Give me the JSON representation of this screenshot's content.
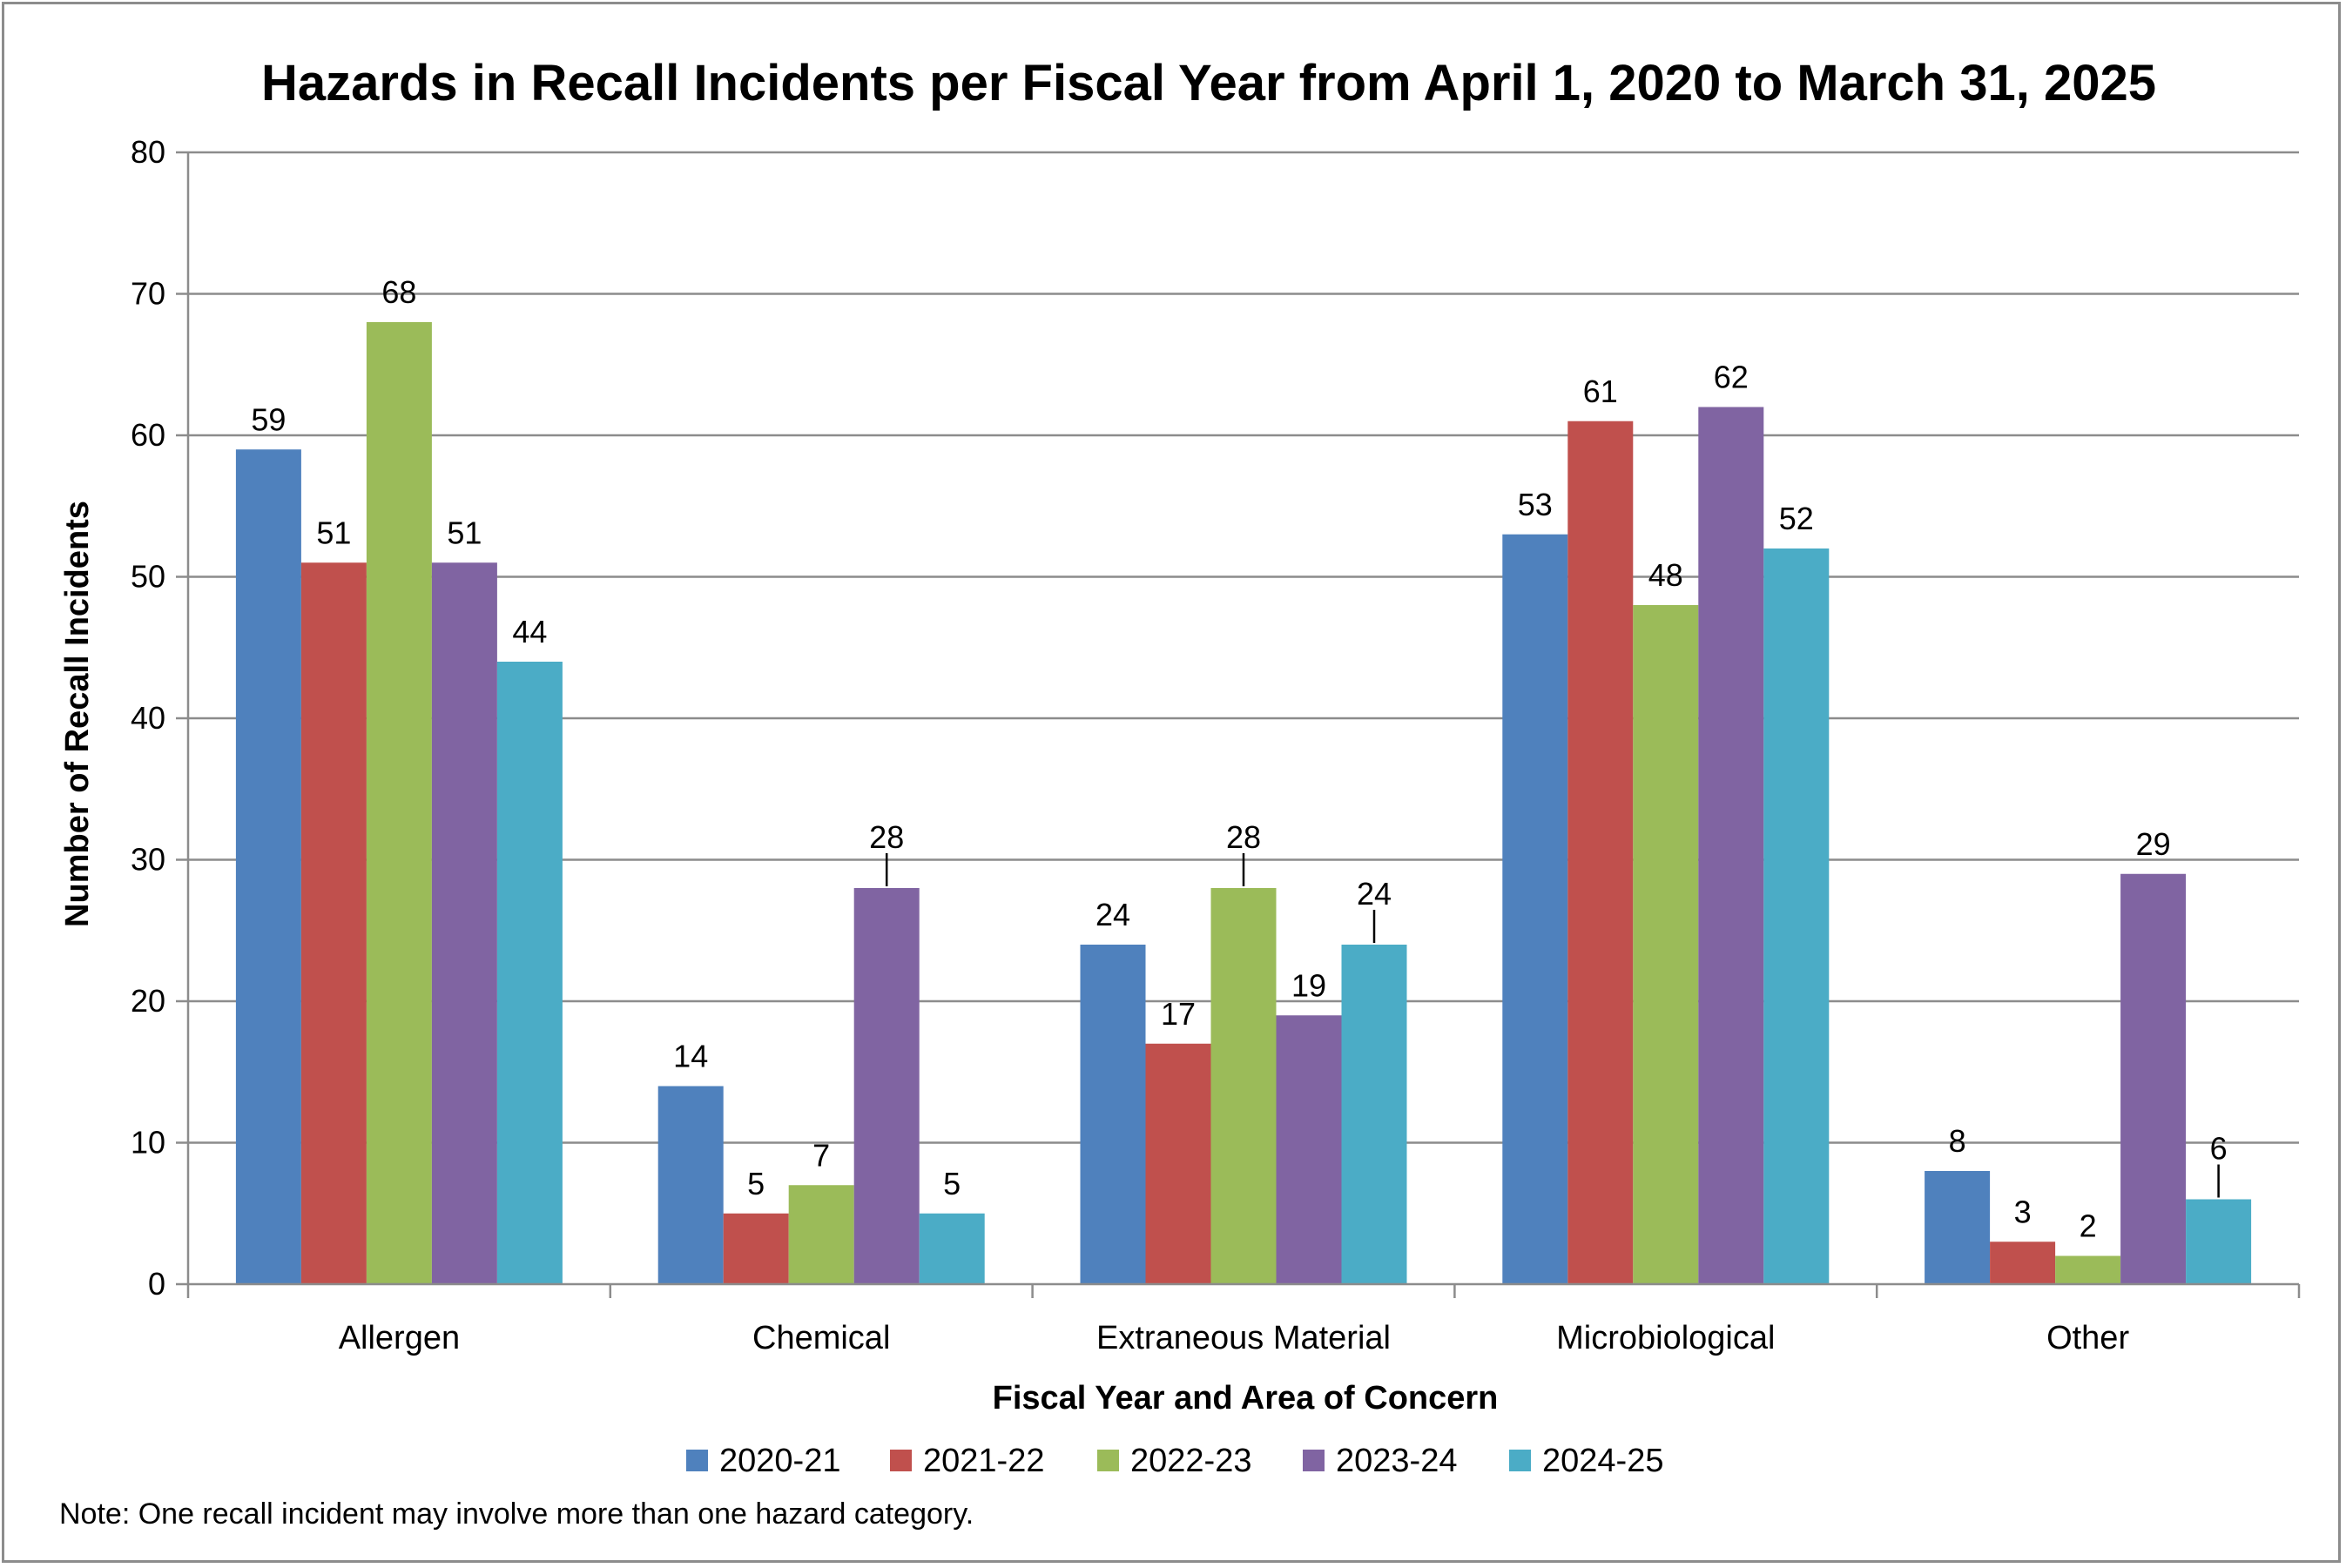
{
  "chart_data": {
    "type": "bar",
    "title": "Hazards in Recall Incidents per Fiscal Year from April 1, 2020 to March 31, 2025",
    "xlabel": "Fiscal Year and Area of Concern",
    "ylabel": "Number of Recall Incidents",
    "ylim": [
      0,
      80
    ],
    "yticks": [
      0,
      10,
      20,
      30,
      40,
      50,
      60,
      70,
      80
    ],
    "grid": true,
    "legend": "bottom",
    "categories": [
      "Allergen",
      "Chemical",
      "Extraneous Material",
      "Microbiological",
      "Other"
    ],
    "series": [
      {
        "name": "2020-21",
        "color": "#4F81BD",
        "values": [
          59,
          14,
          24,
          53,
          8
        ]
      },
      {
        "name": "2021-22",
        "color": "#C0504D",
        "values": [
          51,
          5,
          17,
          61,
          3
        ]
      },
      {
        "name": "2022-23",
        "color": "#9BBB59",
        "values": [
          68,
          7,
          28,
          48,
          2
        ]
      },
      {
        "name": "2023-24",
        "color": "#8064A2",
        "values": [
          51,
          28,
          19,
          62,
          29
        ]
      },
      {
        "name": "2024-25",
        "color": "#4BACC6",
        "values": [
          44,
          5,
          24,
          52,
          6
        ]
      }
    ],
    "note": "Note: One recall incident may involve more than one hazard category."
  }
}
